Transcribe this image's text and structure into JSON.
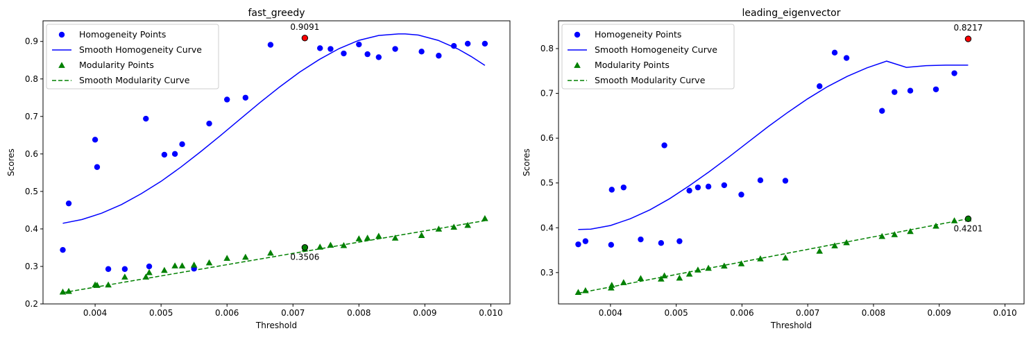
{
  "chart_data": [
    {
      "type": "scatter",
      "title": "fast_greedy",
      "xlabel": "Threshold",
      "ylabel": "Scores",
      "xlim": [
        0.00321,
        0.01029
      ],
      "ylim": [
        0.2,
        0.955
      ],
      "xticks": [
        "0.004",
        "0.005",
        "0.006",
        "0.007",
        "0.008",
        "0.009",
        "0.010"
      ],
      "xtick_values": [
        0.004,
        0.005,
        0.006,
        0.007,
        0.008,
        0.009,
        0.01
      ],
      "yticks": [
        "0.2",
        "0.3",
        "0.4",
        "0.5",
        "0.6",
        "0.7",
        "0.8",
        "0.9"
      ],
      "ytick_values": [
        0.2,
        0.3,
        0.4,
        0.5,
        0.6,
        0.7,
        0.8,
        0.9
      ],
      "legend": {
        "position": "top-left",
        "entries": [
          "Homogeneity Points",
          "Smooth Homogeneity Curve",
          "Modularity Points",
          "Smooth Modularity Curve"
        ]
      },
      "series": [
        {
          "name": "Homogeneity Points",
          "kind": "scatter",
          "marker": "circle",
          "color": "#0000ff",
          "x": [
            0.00351,
            0.0036,
            0.004,
            0.00403,
            0.0042,
            0.00445,
            0.00477,
            0.00482,
            0.00505,
            0.00521,
            0.00532,
            0.0055,
            0.00573,
            0.006,
            0.00628,
            0.00666,
            0.00741,
            0.00757,
            0.00777,
            0.008,
            0.00813,
            0.0083,
            0.00855,
            0.00895,
            0.00921,
            0.00944,
            0.00965,
            0.00991
          ],
          "y": [
            0.344,
            0.468,
            0.638,
            0.565,
            0.293,
            0.293,
            0.694,
            0.3,
            0.598,
            0.6,
            0.626,
            0.294,
            0.681,
            0.745,
            0.75,
            0.891,
            0.882,
            0.88,
            0.868,
            0.892,
            0.866,
            0.858,
            0.88,
            0.873,
            0.862,
            0.888,
            0.894,
            0.894
          ]
        },
        {
          "name": "Smooth Homogeneity Curve",
          "kind": "line",
          "style": "solid",
          "color": "#0000ff",
          "x": [
            0.00351,
            0.0038,
            0.0041,
            0.0044,
            0.0047,
            0.005,
            0.0053,
            0.0056,
            0.0059,
            0.0062,
            0.0065,
            0.0068,
            0.0071,
            0.0074,
            0.0077,
            0.008,
            0.0083,
            0.0086,
            0.0087,
            0.0089,
            0.0092,
            0.0095,
            0.0097,
            0.00991
          ],
          "y": [
            0.415,
            0.425,
            0.442,
            0.465,
            0.494,
            0.527,
            0.565,
            0.606,
            0.649,
            0.693,
            0.737,
            0.779,
            0.818,
            0.852,
            0.881,
            0.903,
            0.916,
            0.92,
            0.92,
            0.917,
            0.903,
            0.88,
            0.86,
            0.836
          ]
        },
        {
          "name": "Modularity Points",
          "kind": "scatter",
          "marker": "triangle",
          "color": "#008000",
          "x": [
            0.00351,
            0.0036,
            0.004,
            0.00403,
            0.0042,
            0.00445,
            0.00477,
            0.00482,
            0.00505,
            0.00521,
            0.00532,
            0.0055,
            0.00573,
            0.006,
            0.00628,
            0.00666,
            0.00718,
            0.00741,
            0.00757,
            0.00777,
            0.008,
            0.00813,
            0.0083,
            0.00855,
            0.00895,
            0.00921,
            0.00944,
            0.00965,
            0.00991
          ],
          "y": [
            0.232,
            0.234,
            0.251,
            0.25,
            0.251,
            0.272,
            0.272,
            0.284,
            0.29,
            0.302,
            0.302,
            0.304,
            0.31,
            0.322,
            0.325,
            0.336,
            0.347,
            0.352,
            0.357,
            0.356,
            0.374,
            0.376,
            0.381,
            0.376,
            0.383,
            0.4,
            0.405,
            0.41,
            0.428
          ]
        },
        {
          "name": "Smooth Modularity Curve",
          "kind": "line",
          "style": "dashed",
          "color": "#008000",
          "x": [
            0.00351,
            0.00991
          ],
          "y": [
            0.23,
            0.422
          ]
        }
      ],
      "annotations": [
        {
          "label": "0.9091",
          "x": 0.00718,
          "y": 0.9091,
          "marker_color": "#ff0000",
          "label_position": "above"
        },
        {
          "label": "0.3506",
          "x": 0.00718,
          "y": 0.3506,
          "marker_color": "#008000",
          "label_position": "below"
        }
      ]
    },
    {
      "type": "scatter",
      "title": "leading_eigenvector",
      "xlabel": "Threshold",
      "ylabel": "Scores",
      "xlim": [
        0.00321,
        0.01029
      ],
      "ylim": [
        0.23,
        0.862
      ],
      "xticks": [
        "0.004",
        "0.005",
        "0.006",
        "0.007",
        "0.008",
        "0.009",
        "0.010"
      ],
      "xtick_values": [
        0.004,
        0.005,
        0.006,
        0.007,
        0.008,
        0.009,
        0.01
      ],
      "yticks": [
        "0.3",
        "0.4",
        "0.5",
        "0.6",
        "0.7",
        "0.8"
      ],
      "ytick_values": [
        0.3,
        0.4,
        0.5,
        0.6,
        0.7,
        0.8
      ],
      "legend": {
        "position": "top-left",
        "entries": [
          "Homogeneity Points",
          "Smooth Homogeneity Curve",
          "Modularity Points",
          "Smooth Modularity Curve"
        ]
      },
      "series": [
        {
          "name": "Homogeneity Points",
          "kind": "scatter",
          "marker": "circle",
          "color": "#0000ff",
          "x": [
            0.00351,
            0.00362,
            0.00401,
            0.00402,
            0.0042,
            0.00446,
            0.00477,
            0.00482,
            0.00505,
            0.0052,
            0.00533,
            0.00549,
            0.00573,
            0.00599,
            0.00628,
            0.00666,
            0.00718,
            0.00741,
            0.00759,
            0.00813,
            0.00832,
            0.00856,
            0.00895,
            0.00923
          ],
          "y": [
            0.363,
            0.37,
            0.362,
            0.485,
            0.49,
            0.374,
            0.366,
            0.584,
            0.37,
            0.483,
            0.49,
            0.492,
            0.495,
            0.474,
            0.506,
            0.505,
            0.716,
            0.791,
            0.779,
            0.661,
            0.703,
            0.706,
            0.709,
            0.745
          ]
        },
        {
          "name": "Smooth Homogeneity Curve",
          "kind": "line",
          "style": "solid",
          "color": "#0000ff",
          "x": [
            0.00351,
            0.0037,
            0.004,
            0.0043,
            0.0046,
            0.0049,
            0.0052,
            0.0055,
            0.0058,
            0.0061,
            0.0064,
            0.0067,
            0.007,
            0.0073,
            0.0076,
            0.0079,
            0.0082,
            0.0085,
            0.0088,
            0.0091,
            0.00925,
            0.00944
          ],
          "y": [
            0.396,
            0.397,
            0.405,
            0.42,
            0.44,
            0.465,
            0.494,
            0.525,
            0.558,
            0.592,
            0.626,
            0.658,
            0.688,
            0.715,
            0.738,
            0.757,
            0.772,
            0.758,
            0.762,
            0.763,
            0.763,
            0.763
          ]
        },
        {
          "name": "Modularity Points",
          "kind": "scatter",
          "marker": "triangle",
          "color": "#008000",
          "x": [
            0.00351,
            0.00362,
            0.00401,
            0.00402,
            0.0042,
            0.00446,
            0.00477,
            0.00482,
            0.00505,
            0.0052,
            0.00533,
            0.00549,
            0.00573,
            0.00599,
            0.00628,
            0.00666,
            0.00718,
            0.00741,
            0.00759,
            0.00813,
            0.00832,
            0.00856,
            0.00895,
            0.00923,
            0.00944
          ],
          "y": [
            0.256,
            0.26,
            0.266,
            0.272,
            0.278,
            0.287,
            0.286,
            0.293,
            0.288,
            0.297,
            0.306,
            0.31,
            0.315,
            0.32,
            0.331,
            0.333,
            0.348,
            0.36,
            0.367,
            0.381,
            0.385,
            0.392,
            0.404,
            0.416,
            0.42
          ]
        },
        {
          "name": "Smooth Modularity Curve",
          "kind": "line",
          "style": "dashed",
          "color": "#008000",
          "x": [
            0.00351,
            0.00944
          ],
          "y": [
            0.254,
            0.42
          ]
        }
      ],
      "annotations": [
        {
          "label": "0.8217",
          "x": 0.00944,
          "y": 0.8217,
          "marker_color": "#ff0000",
          "label_position": "above"
        },
        {
          "label": "0.4201",
          "x": 0.00944,
          "y": 0.4201,
          "marker_color": "#008000",
          "label_position": "below"
        }
      ]
    }
  ]
}
